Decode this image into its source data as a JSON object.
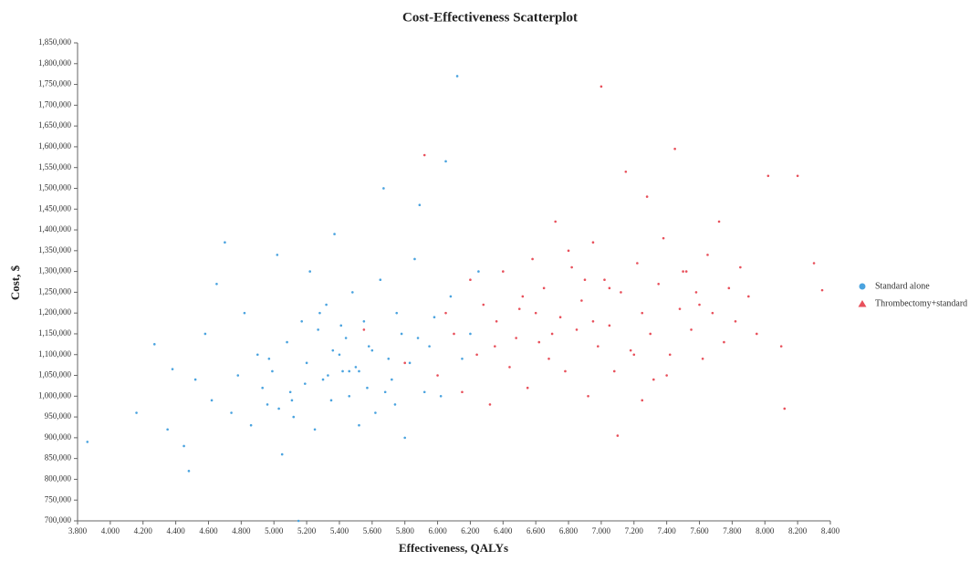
{
  "chart_data": {
    "type": "scatter",
    "title": "Cost-Effectiveness Scatterplot",
    "x_label": "Effectiveness, QALYs",
    "y_label": "Cost, $",
    "xlim": [
      3.8,
      8.4
    ],
    "ylim": [
      700000,
      1850000
    ],
    "xticks": [
      {
        "value": 3.8,
        "label": "3.800"
      },
      {
        "value": 4.0,
        "label": "4.000"
      },
      {
        "value": 4.2,
        "label": "4.200"
      },
      {
        "value": 4.4,
        "label": "4.400"
      },
      {
        "value": 4.6,
        "label": "4.600"
      },
      {
        "value": 4.8,
        "label": "4.800"
      },
      {
        "value": 5.0,
        "label": "5.000"
      },
      {
        "value": 5.2,
        "label": "5.200"
      },
      {
        "value": 5.4,
        "label": "5.400"
      },
      {
        "value": 5.6,
        "label": "5.600"
      },
      {
        "value": 5.8,
        "label": "5.800"
      },
      {
        "value": 6.0,
        "label": "6.000"
      },
      {
        "value": 6.2,
        "label": "6.200"
      },
      {
        "value": 6.4,
        "label": "6.400"
      },
      {
        "value": 6.6,
        "label": "6.600"
      },
      {
        "value": 6.8,
        "label": "6.800"
      },
      {
        "value": 7.0,
        "label": "7.000"
      },
      {
        "value": 7.2,
        "label": "7.200"
      },
      {
        "value": 7.4,
        "label": "7.400"
      },
      {
        "value": 7.6,
        "label": "7.600"
      },
      {
        "value": 7.8,
        "label": "7.800"
      },
      {
        "value": 8.0,
        "label": "8.000"
      },
      {
        "value": 8.2,
        "label": "8.200"
      },
      {
        "value": 8.4,
        "label": "8.400"
      }
    ],
    "yticks": [
      {
        "value": 700000,
        "label": "700,000"
      },
      {
        "value": 750000,
        "label": "750,000"
      },
      {
        "value": 800000,
        "label": "800,000"
      },
      {
        "value": 850000,
        "label": "850,000"
      },
      {
        "value": 900000,
        "label": "900,000"
      },
      {
        "value": 950000,
        "label": "950,000"
      },
      {
        "value": 1000000,
        "label": "1,000,000"
      },
      {
        "value": 1050000,
        "label": "1,050,000"
      },
      {
        "value": 1100000,
        "label": "1,100,000"
      },
      {
        "value": 1150000,
        "label": "1,150,000"
      },
      {
        "value": 1200000,
        "label": "1,200,000"
      },
      {
        "value": 1250000,
        "label": "1,250,000"
      },
      {
        "value": 1300000,
        "label": "1,300,000"
      },
      {
        "value": 1350000,
        "label": "1,350,000"
      },
      {
        "value": 1400000,
        "label": "1,400,000"
      },
      {
        "value": 1450000,
        "label": "1,450,000"
      },
      {
        "value": 1500000,
        "label": "1,500,000"
      },
      {
        "value": 1550000,
        "label": "1,550,000"
      },
      {
        "value": 1600000,
        "label": "1,600,000"
      },
      {
        "value": 1650000,
        "label": "1,650,000"
      },
      {
        "value": 1700000,
        "label": "1,700,000"
      },
      {
        "value": 1750000,
        "label": "1,750,000"
      },
      {
        "value": 1800000,
        "label": "1,800,000"
      },
      {
        "value": 1850000,
        "label": "1,850,000"
      }
    ],
    "legend": "right",
    "series": [
      {
        "name": "Standard alone",
        "color": "#4aa3df",
        "marker": "circle",
        "x": [
          3.86,
          4.16,
          4.27,
          4.35,
          4.38,
          4.45,
          4.48,
          4.52,
          4.58,
          4.62,
          4.65,
          4.7,
          4.74,
          4.78,
          4.82,
          4.86,
          4.9,
          4.93,
          4.96,
          4.99,
          5.02,
          5.05,
          5.08,
          5.1,
          5.12,
          5.15,
          5.17,
          5.2,
          5.22,
          5.25,
          5.27,
          5.3,
          5.32,
          5.35,
          5.37,
          5.4,
          5.42,
          5.44,
          5.46,
          5.48,
          5.5,
          5.52,
          5.55,
          5.57,
          5.6,
          5.62,
          5.65,
          5.67,
          5.7,
          5.72,
          5.75,
          5.78,
          5.8,
          5.83,
          5.86,
          5.89,
          5.92,
          5.95,
          5.98,
          6.02,
          6.05,
          6.08,
          6.12,
          6.15,
          6.2,
          6.25,
          5.33,
          5.41,
          5.58,
          5.11,
          5.03,
          4.97,
          5.68,
          5.28,
          5.46,
          5.74,
          5.19,
          5.36,
          5.52,
          5.88
        ],
        "values": [
          890000,
          960000,
          1125000,
          920000,
          1065000,
          880000,
          820000,
          1040000,
          1150000,
          990000,
          1270000,
          1370000,
          960000,
          1050000,
          1200000,
          930000,
          1100000,
          1020000,
          980000,
          1060000,
          1340000,
          860000,
          1130000,
          1010000,
          950000,
          700000,
          1180000,
          1080000,
          1300000,
          920000,
          1160000,
          1040000,
          1220000,
          990000,
          1390000,
          1100000,
          1060000,
          1140000,
          1000000,
          1250000,
          1070000,
          930000,
          1180000,
          1020000,
          1110000,
          960000,
          1280000,
          1500000,
          1090000,
          1040000,
          1200000,
          1150000,
          900000,
          1080000,
          1330000,
          1460000,
          1010000,
          1120000,
          1190000,
          1000000,
          1565000,
          1240000,
          1770000,
          1090000,
          1150000,
          1300000,
          1050000,
          1170000,
          1120000,
          990000,
          970000,
          1090000,
          1010000,
          1200000,
          1060000,
          980000,
          1030000,
          1110000,
          1060000,
          1140000
        ]
      },
      {
        "name": "Thrombectomy+standard",
        "color": "#e8505b",
        "marker": "triangle",
        "x": [
          5.55,
          5.8,
          5.92,
          6.0,
          6.05,
          6.1,
          6.15,
          6.2,
          6.24,
          6.28,
          6.32,
          6.36,
          6.4,
          6.44,
          6.48,
          6.52,
          6.55,
          6.58,
          6.62,
          6.65,
          6.68,
          6.72,
          6.75,
          6.78,
          6.82,
          6.85,
          6.88,
          6.92,
          6.95,
          6.98,
          7.0,
          7.02,
          7.05,
          7.08,
          7.12,
          7.15,
          7.18,
          7.22,
          7.25,
          7.28,
          7.3,
          7.32,
          7.35,
          7.38,
          7.42,
          7.45,
          7.48,
          7.52,
          7.55,
          7.58,
          7.62,
          7.65,
          7.68,
          7.72,
          7.75,
          7.78,
          7.82,
          7.85,
          7.9,
          7.95,
          8.02,
          8.1,
          8.12,
          8.2,
          8.3,
          8.35,
          6.6,
          6.7,
          6.9,
          7.1,
          7.2,
          6.5,
          6.8,
          7.4,
          7.6,
          6.35,
          6.95,
          7.05,
          7.25,
          7.5
        ],
        "values": [
          1160000,
          1080000,
          1580000,
          1050000,
          1200000,
          1150000,
          1010000,
          1280000,
          1100000,
          1220000,
          980000,
          1180000,
          1300000,
          1070000,
          1140000,
          1240000,
          1020000,
          1330000,
          1130000,
          1260000,
          1090000,
          1420000,
          1190000,
          1060000,
          1310000,
          1160000,
          1230000,
          1000000,
          1370000,
          1120000,
          1745000,
          1280000,
          1170000,
          1060000,
          1250000,
          1540000,
          1110000,
          1320000,
          1200000,
          1480000,
          1150000,
          1040000,
          1270000,
          1380000,
          1100000,
          1595000,
          1210000,
          1300000,
          1160000,
          1250000,
          1090000,
          1340000,
          1200000,
          1420000,
          1130000,
          1260000,
          1180000,
          1310000,
          1240000,
          1150000,
          1530000,
          1120000,
          970000,
          1530000,
          1320000,
          1255000,
          1200000,
          1150000,
          1280000,
          905000,
          1100000,
          1210000,
          1350000,
          1050000,
          1220000,
          1120000,
          1180000,
          1260000,
          990000,
          1300000
        ]
      }
    ]
  }
}
